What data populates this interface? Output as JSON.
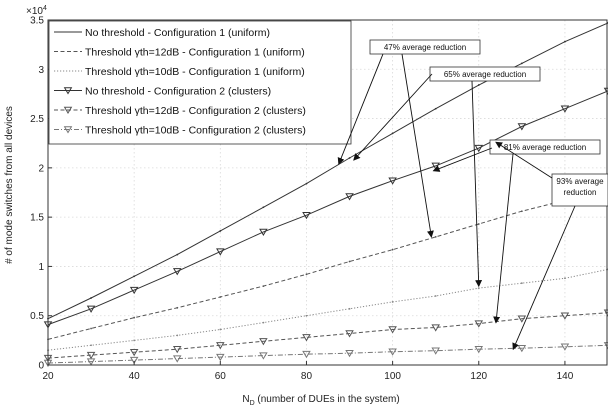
{
  "chart_data": {
    "type": "line",
    "xlabel": "N",
    "xlabel_sub": "D",
    "xlabel_rest": " (number of DUEs in the system)",
    "ylabel": "# of mode switches from all devices",
    "y_multiplier": "×10",
    "y_multiplier_exp": "4",
    "xlim": [
      20,
      150
    ],
    "ylim": [
      0,
      3.5
    ],
    "xticks": [
      20,
      40,
      60,
      80,
      100,
      120,
      140
    ],
    "yticks": [
      0,
      0.5,
      1,
      1.5,
      2,
      2.5,
      3,
      3.5
    ],
    "grid": true,
    "legend_position": "top-left",
    "series": [
      {
        "name": "No threshold - Configuration 1 (uniform)",
        "color": "#333333",
        "dash": "solid",
        "marker": "none",
        "x": [
          20,
          30,
          40,
          50,
          60,
          70,
          80,
          90,
          100,
          110,
          120,
          130,
          140,
          150
        ],
        "y": [
          0.47,
          0.68,
          0.9,
          1.12,
          1.36,
          1.6,
          1.84,
          2.1,
          2.35,
          2.6,
          2.84,
          3.06,
          3.28,
          3.47
        ]
      },
      {
        "name": "Threshold γth=12dB - Configuration 1 (uniform)",
        "color": "#555555",
        "dash": "dashed",
        "marker": "none",
        "x": [
          20,
          30,
          40,
          50,
          60,
          70,
          80,
          90,
          100,
          110,
          120,
          130,
          140,
          150
        ],
        "y": [
          0.26,
          0.37,
          0.48,
          0.58,
          0.69,
          0.8,
          0.92,
          1.05,
          1.17,
          1.3,
          1.43,
          1.56,
          1.67,
          1.79
        ]
      },
      {
        "name": "Threshold γth=10dB - Configuration 1 (uniform)",
        "color": "#888888",
        "dash": "dotted",
        "marker": "none",
        "x": [
          20,
          30,
          40,
          50,
          60,
          70,
          80,
          90,
          100,
          110,
          120,
          130,
          140,
          150
        ],
        "y": [
          0.15,
          0.2,
          0.25,
          0.3,
          0.36,
          0.43,
          0.5,
          0.57,
          0.64,
          0.7,
          0.78,
          0.83,
          0.88,
          0.97
        ]
      },
      {
        "name": "No threshold - Configuration 2 (clusters)",
        "color": "#333333",
        "dash": "solid",
        "marker": "triangle",
        "x": [
          20,
          30,
          40,
          50,
          60,
          70,
          80,
          90,
          100,
          110,
          120,
          130,
          140,
          150
        ],
        "y": [
          0.41,
          0.57,
          0.76,
          0.95,
          1.15,
          1.35,
          1.52,
          1.71,
          1.87,
          2.02,
          2.2,
          2.42,
          2.6,
          2.78
        ]
      },
      {
        "name": "Threshold γth=12dB - Configuration 2 (clusters)",
        "color": "#555555",
        "dash": "dashed",
        "marker": "triangle",
        "x": [
          20,
          30,
          40,
          50,
          60,
          70,
          80,
          90,
          100,
          110,
          120,
          130,
          140,
          150
        ],
        "y": [
          0.07,
          0.1,
          0.13,
          0.16,
          0.2,
          0.24,
          0.28,
          0.32,
          0.36,
          0.38,
          0.42,
          0.47,
          0.5,
          0.53
        ]
      },
      {
        "name": "Threshold γth=10dB - Configuration 2 (clusters)",
        "color": "#777777",
        "dash": "dashdot",
        "marker": "triangle",
        "x": [
          20,
          30,
          40,
          50,
          60,
          70,
          80,
          90,
          100,
          110,
          120,
          130,
          140,
          150
        ],
        "y": [
          0.02,
          0.035,
          0.05,
          0.065,
          0.08,
          0.095,
          0.11,
          0.12,
          0.135,
          0.145,
          0.16,
          0.17,
          0.185,
          0.2
        ]
      }
    ],
    "annotations": [
      {
        "text": "47% average reduction",
        "lines": [
          "47% average reduction"
        ],
        "arrows": [
          {
            "x": 87.5,
            "y": 2.04
          },
          {
            "x": 109,
            "y": 1.3
          }
        ]
      },
      {
        "text": "65% average reduction",
        "lines": [
          "65% average reduction"
        ],
        "arrows": [
          {
            "x": 91,
            "y": 2.08
          },
          {
            "x": 120,
            "y": 0.8
          }
        ]
      },
      {
        "text": "81% average reduction",
        "lines": [
          "81% average reduction"
        ],
        "arrows": [
          {
            "x": 109.5,
            "y": 1.97
          },
          {
            "x": 124,
            "y": 0.43
          }
        ]
      },
      {
        "text": "93% average reduction",
        "lines": [
          "93% average",
          "reduction"
        ],
        "arrows": [
          {
            "x": 124,
            "y": 2.26
          },
          {
            "x": 128,
            "y": 0.16
          }
        ]
      }
    ]
  }
}
